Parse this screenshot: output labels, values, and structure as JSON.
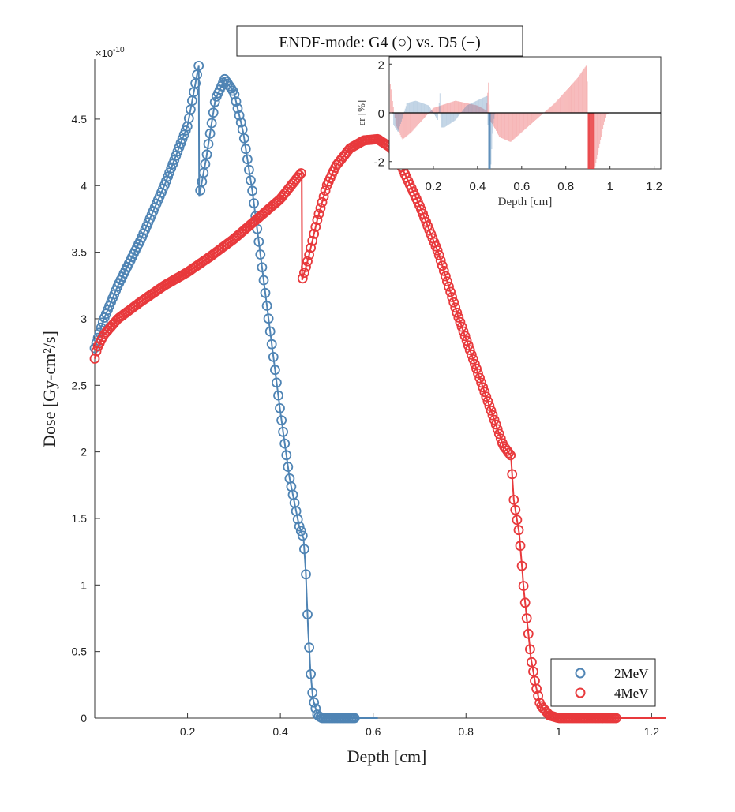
{
  "chart_data": [
    {
      "type": "scatter",
      "title": "ENDF-mode: G4 (○) vs. D5 (−)",
      "xlabel": "Depth [cm]",
      "ylabel": "Dose [Gy-cm²/s]",
      "y_exponent_label": "×10",
      "y_exponent_power": "-10",
      "xlim": [
        0,
        1.23
      ],
      "ylim": [
        0,
        4.95
      ],
      "xticks": [
        0.2,
        0.4,
        0.6,
        0.8,
        1,
        1.2
      ],
      "xtick_labels": [
        "0.2",
        "0.4",
        "0.6",
        "0.8",
        "1",
        "1.2"
      ],
      "yticks": [
        0,
        0.5,
        1,
        1.5,
        2,
        2.5,
        3,
        3.5,
        4,
        4.5
      ],
      "ytick_labels": [
        "0",
        "0.5",
        "1",
        "1.5",
        "2",
        "2.5",
        "3",
        "3.5",
        "4",
        "4.5"
      ],
      "grid": false,
      "legend_position": "bottom-right",
      "series": [
        {
          "name": "2MeV",
          "color": "#4f84b4",
          "marker_range": [
            0,
            0.56
          ],
          "line_end": 0.61,
          "x": [
            0,
            0.02,
            0.05,
            0.1,
            0.15,
            0.2,
            0.224,
            0.2241,
            0.24,
            0.26,
            0.28,
            0.3,
            0.32,
            0.34,
            0.36,
            0.38,
            0.4,
            0.42,
            0.44,
            0.45,
            0.455,
            0.46,
            0.465,
            0.47,
            0.48,
            0.49,
            0.61
          ],
          "y": [
            2.78,
            3.0,
            3.25,
            3.6,
            4.0,
            4.45,
            4.9,
            3.9,
            4.2,
            4.65,
            4.8,
            4.7,
            4.4,
            3.95,
            3.4,
            2.85,
            2.3,
            1.8,
            1.45,
            1.35,
            1.08,
            0.65,
            0.35,
            0.15,
            0.02,
            0,
            0
          ]
        },
        {
          "name": "4MeV",
          "color": "#e8393c",
          "marker_range": [
            0,
            1.125
          ],
          "line_end": 1.23,
          "x": [
            0,
            0.005,
            0.02,
            0.05,
            0.1,
            0.15,
            0.2,
            0.25,
            0.3,
            0.35,
            0.4,
            0.446,
            0.4461,
            0.46,
            0.48,
            0.5,
            0.52,
            0.55,
            0.58,
            0.61,
            0.64,
            0.66,
            0.7,
            0.74,
            0.78,
            0.8,
            0.84,
            0.86,
            0.88,
            0.897,
            0.903,
            0.915,
            0.925,
            0.94,
            0.95,
            0.96,
            0.98,
            1.0,
            1.23
          ],
          "y": [
            2.7,
            2.78,
            2.88,
            3.0,
            3.13,
            3.25,
            3.35,
            3.47,
            3.6,
            3.75,
            3.9,
            4.1,
            3.28,
            3.45,
            3.75,
            4.0,
            4.15,
            4.28,
            4.34,
            4.35,
            4.28,
            4.15,
            3.85,
            3.5,
            3.05,
            2.85,
            2.45,
            2.25,
            2.05,
            1.97,
            1.64,
            1.38,
            0.95,
            0.45,
            0.25,
            0.1,
            0.02,
            0,
            0
          ]
        }
      ]
    },
    {
      "type": "bar",
      "subtype": "stem",
      "xlabel": "Depth [cm]",
      "ylabel": "εr [%]",
      "xlim": [
        0,
        1.23
      ],
      "ylim": [
        -2.3,
        2.3
      ],
      "xticks": [
        0.2,
        0.4,
        0.6,
        0.8,
        1,
        1.2
      ],
      "xtick_labels": [
        "0.2",
        "0.4",
        "0.6",
        "0.8",
        "1",
        "1.2"
      ],
      "yticks": [
        -2,
        0,
        2
      ],
      "ytick_labels": [
        "-2",
        "0",
        "2"
      ],
      "series": [
        {
          "color": "#e8393c",
          "x": [
            0.005,
            0.03,
            0.06,
            0.1,
            0.16,
            0.2,
            0.3,
            0.4,
            0.44,
            0.45,
            0.455,
            0.47,
            0.5,
            0.55,
            0.6,
            0.7,
            0.75,
            0.8,
            0.85,
            0.897,
            0.9,
            0.93,
            0.96,
            0.98,
            1.0
          ],
          "y": [
            1.2,
            -0.5,
            -1.1,
            -0.8,
            -0.2,
            0.2,
            0.5,
            0.3,
            0.1,
            1.3,
            -0.3,
            -0.5,
            -1.0,
            -1.2,
            -0.8,
            0,
            0.4,
            0.9,
            1.4,
            2.0,
            -2.3,
            -2.3,
            -1.0,
            -0.1,
            0
          ]
        },
        {
          "color": "#4f84b4",
          "x": [
            0.02,
            0.04,
            0.08,
            0.12,
            0.18,
            0.22,
            0.23,
            0.235,
            0.25,
            0.3,
            0.35,
            0.42,
            0.445,
            0.45,
            0.46,
            0.47,
            0.48
          ],
          "y": [
            -0.5,
            -0.8,
            0.4,
            0.5,
            0.3,
            -0.3,
            0.8,
            -0.6,
            -0.6,
            -0.3,
            0.3,
            0.6,
            0.7,
            -2.3,
            -2.3,
            -0.5,
            0
          ]
        }
      ]
    }
  ]
}
